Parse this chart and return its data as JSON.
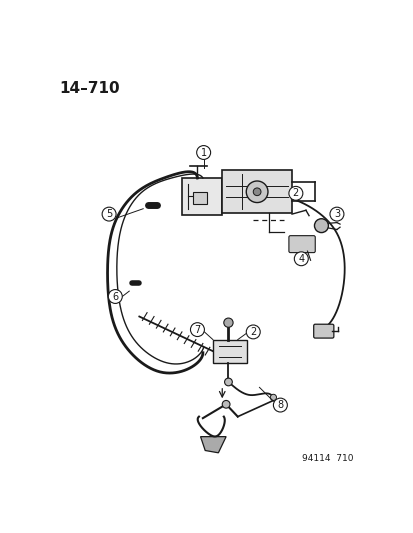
{
  "title": "14–710",
  "part_number": "94114  710",
  "background_color": "#ffffff",
  "line_color": "#1a1a1a",
  "text_color": "#1a1a1a",
  "title_fontsize": 11,
  "callout_fontsize": 7.5,
  "fig_width": 4.14,
  "fig_height": 5.33,
  "dpi": 100
}
